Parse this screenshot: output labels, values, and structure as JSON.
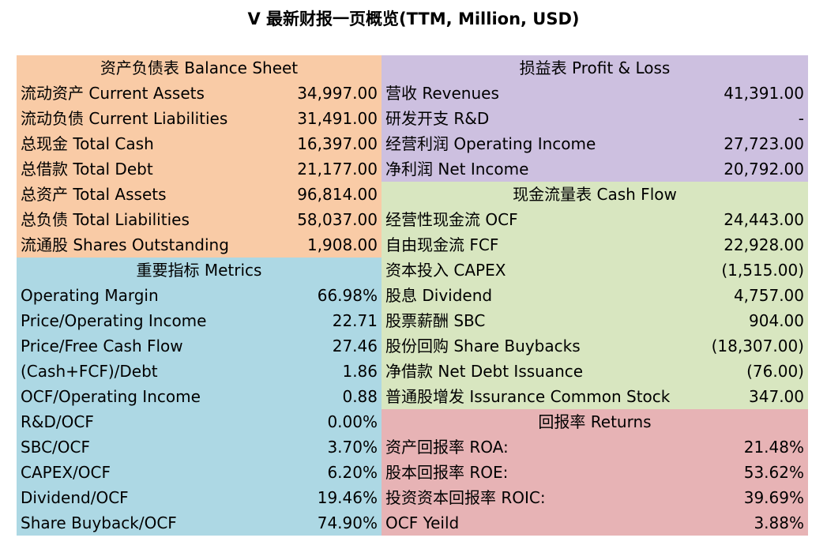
{
  "title": "V 最新财报一页概览(TTM, Million, USD)",
  "colors": {
    "balance_sheet": "#f9cba6",
    "metrics": "#add8e4",
    "profit_loss": "#cdc0e0",
    "cash_flow": "#d8e6c0",
    "returns": "#e7b3b5"
  },
  "balance_sheet": {
    "header": "资产负债表 Balance Sheet",
    "rows": [
      {
        "label": "流动资产 Current Assets",
        "value": "34,997.00"
      },
      {
        "label": "流动负债 Current Liabilities",
        "value": "31,491.00"
      },
      {
        "label": "总现金 Total Cash",
        "value": "16,397.00"
      },
      {
        "label": "总借款 Total Debt",
        "value": "21,177.00"
      },
      {
        "label": "总资产 Total Assets",
        "value": "96,814.00"
      },
      {
        "label": "总负债 Total Liabilities",
        "value": "58,037.00"
      },
      {
        "label": "流通股 Shares Outstanding",
        "value": "1,908.00"
      }
    ]
  },
  "metrics": {
    "header": "重要指标 Metrics",
    "rows": [
      {
        "label": "Operating Margin",
        "value": "66.98%"
      },
      {
        "label": "Price/Operating Income",
        "value": "22.71"
      },
      {
        "label": "Price/Free Cash Flow",
        "value": "27.46"
      },
      {
        "label": "(Cash+FCF)/Debt",
        "value": "1.86"
      },
      {
        "label": "OCF/Operating Income",
        "value": "0.88"
      },
      {
        "label": "R&D/OCF",
        "value": "0.00%"
      },
      {
        "label": "SBC/OCF",
        "value": "3.70%"
      },
      {
        "label": "CAPEX/OCF",
        "value": "6.20%"
      },
      {
        "label": "Dividend/OCF",
        "value": "19.46%"
      },
      {
        "label": "Share Buyback/OCF",
        "value": "74.90%"
      }
    ]
  },
  "profit_loss": {
    "header": "损益表 Profit & Loss",
    "rows": [
      {
        "label": "营收 Revenues",
        "value": "41,391.00"
      },
      {
        "label": "研发开支 R&D",
        "value": "-"
      },
      {
        "label": "经营利润 Operating Income",
        "value": "27,723.00"
      },
      {
        "label": "净利润 Net Income",
        "value": "20,792.00"
      }
    ]
  },
  "cash_flow": {
    "header": "现金流量表 Cash Flow",
    "rows": [
      {
        "label": "经营性现金流 OCF",
        "value": "24,443.00"
      },
      {
        "label": "自由现金流 FCF",
        "value": "22,928.00"
      },
      {
        "label": "资本投入 CAPEX",
        "value": "(1,515.00)"
      },
      {
        "label": "股息 Dividend",
        "value": "4,757.00"
      },
      {
        "label": "股票薪酬 SBC",
        "value": "904.00"
      },
      {
        "label": "股份回购 Share Buybacks",
        "value": "(18,307.00)"
      },
      {
        "label": "净借款 Net Debt Issuance",
        "value": "(76.00)"
      },
      {
        "label": "普通股增发 Issurance Common Stock",
        "value": "347.00"
      }
    ]
  },
  "returns": {
    "header": "回报率 Returns",
    "rows": [
      {
        "label": "资产回报率 ROA:",
        "value": "21.48%"
      },
      {
        "label": "股本回报率 ROE:",
        "value": "53.62%"
      },
      {
        "label": "投资资本回报率 ROIC:",
        "value": "39.69%"
      },
      {
        "label": "OCF Yeild",
        "value": "3.88%"
      }
    ]
  }
}
